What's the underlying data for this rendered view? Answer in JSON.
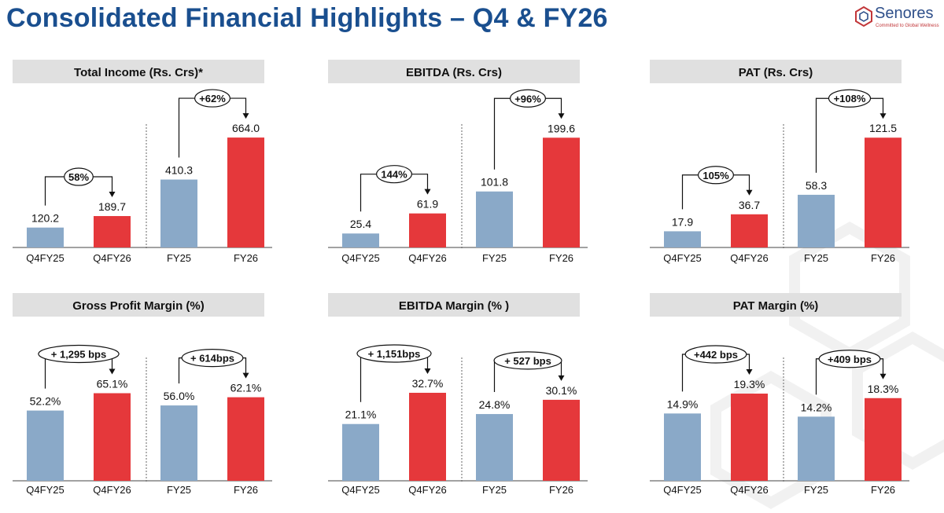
{
  "header": {
    "title": "Consolidated Financial Highlights – Q4 & FY26",
    "brand_name": "Senores",
    "brand_tagline": "Committed to Global Wellness"
  },
  "colors": {
    "title": "#1a4f8f",
    "bar_previous": "#8aa9c8",
    "bar_current": "#e5383b",
    "panel_header_bg": "#e0e0e0"
  },
  "chart_data": [
    {
      "type": "bar",
      "title": "Total Income (Rs. Crs)*",
      "categories": [
        "Q4FY25",
        "Q4FY26",
        "FY25",
        "FY26"
      ],
      "values": [
        120.2,
        189.7,
        410.3,
        664.0
      ],
      "data_labels": [
        "120.2",
        "189.7",
        "410.3",
        "664.0"
      ],
      "growth": [
        "58%",
        "+62%"
      ],
      "ylim": [
        0,
        840
      ]
    },
    {
      "type": "bar",
      "title": "EBITDA (Rs. Crs)",
      "categories": [
        "Q4FY25",
        "Q4FY26",
        "FY25",
        "FY26"
      ],
      "values": [
        25.4,
        61.9,
        101.8,
        199.6
      ],
      "data_labels": [
        "25.4",
        "61.9",
        "101.8",
        "199.6"
      ],
      "growth": [
        "144%",
        "+96%"
      ],
      "ylim": [
        0,
        250
      ]
    },
    {
      "type": "bar",
      "title": "PAT (Rs. Crs)",
      "categories": [
        "Q4FY25",
        "Q4FY26",
        "FY25",
        "FY26"
      ],
      "values": [
        17.9,
        36.7,
        58.3,
        121.5
      ],
      "data_labels": [
        "17.9",
        "36.7",
        "58.3",
        "121.5"
      ],
      "growth": [
        "105%",
        "+108%"
      ],
      "ylim": [
        0,
        153
      ]
    },
    {
      "type": "bar",
      "title": "Gross Profit Margin (%)",
      "categories": [
        "Q4FY25",
        "Q4FY26",
        "FY25",
        "FY26"
      ],
      "values": [
        52.2,
        65.1,
        56.0,
        62.1
      ],
      "data_labels": [
        "52.2%",
        "65.1%",
        "56.0%",
        "62.1%"
      ],
      "growth": [
        "+ 1,295 bps",
        "+ 614bps"
      ],
      "ylim": [
        0,
        94
      ]
    },
    {
      "type": "bar",
      "title": "EBITDA Margin (% )",
      "categories": [
        "Q4FY25",
        "Q4FY26",
        "FY25",
        "FY26"
      ],
      "values": [
        21.1,
        32.7,
        24.8,
        30.1
      ],
      "data_labels": [
        "21.1%",
        "32.7%",
        "24.8%",
        "30.1%"
      ],
      "growth": [
        "+ 1,151bps",
        "+ 527 bps"
      ],
      "ylim": [
        0,
        47
      ]
    },
    {
      "type": "bar",
      "title": "PAT Margin (%)",
      "categories": [
        "Q4FY25",
        "Q4FY26",
        "FY25",
        "FY26"
      ],
      "values": [
        14.9,
        19.3,
        14.2,
        18.3
      ],
      "data_labels": [
        "14.9%",
        "19.3%",
        "14.2%",
        "18.3%"
      ],
      "growth": [
        "+442 bps",
        "+409 bps"
      ],
      "ylim": [
        0,
        28
      ]
    }
  ]
}
